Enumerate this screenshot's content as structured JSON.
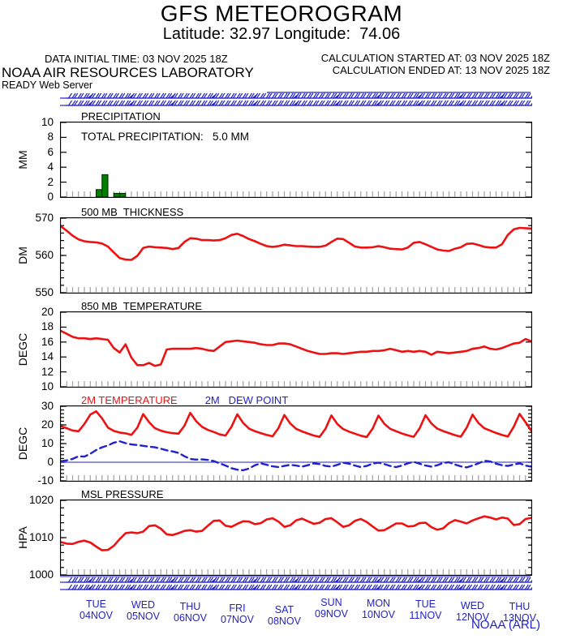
{
  "header": {
    "title": "GFS METEOROGRAM",
    "subtitle": "Latitude: 32.97 Longitude:  74.06",
    "data_initial_time": "DATA INITIAL TIME: 03 NOV 2025 18Z",
    "calc_started": "CALCULATION STARTED AT: 03 NOV 2025 18Z",
    "calc_ended": "CALCULATION ENDED AT: 13 NOV 2025 18Z",
    "organization": "NOAA AIR RESOURCES LABORATORY",
    "server": "READY Web Server"
  },
  "footer": {
    "credit": "NOAA (ARL)"
  },
  "colors": {
    "red": "#ee1111",
    "blue": "#2222cc",
    "green": "#008000",
    "tick_gray": "#a0a0a0"
  },
  "wind_band": {
    "color": "#2222cc"
  },
  "x_axis": {
    "days": [
      {
        "day": "TUE",
        "date": "04NOV"
      },
      {
        "day": "WED",
        "date": "05NOV"
      },
      {
        "day": "THU",
        "date": "06NOV"
      },
      {
        "day": "FRI",
        "date": "07NOV"
      },
      {
        "day": "SAT",
        "date": "08NOV"
      },
      {
        "day": "SUN",
        "date": "09NOV"
      },
      {
        "day": "MON",
        "date": "10NOV"
      },
      {
        "day": "TUE",
        "date": "11NOV"
      },
      {
        "day": "WED",
        "date": "12NOV"
      },
      {
        "day": "THU",
        "date": "13NOV"
      }
    ],
    "start": "03 NOV 2025 18Z",
    "end": "13 NOV 2025 18Z",
    "step_hours": 3
  },
  "chart_data": [
    {
      "type": "bar",
      "title": "PRECIPITATION",
      "annotation": "TOTAL PRECIPITATION:   5.0 MM",
      "ylabel": "MM",
      "ylim": [
        0,
        10
      ],
      "yticks": [
        0,
        2,
        4,
        6,
        8,
        10
      ],
      "bar_color": "#008000",
      "values": [
        0,
        0,
        0,
        0,
        0,
        0,
        1.0,
        3.0,
        0,
        0.5,
        0.5,
        0,
        0,
        0,
        0,
        0,
        0,
        0,
        0,
        0,
        0,
        0,
        0,
        0,
        0,
        0,
        0,
        0,
        0,
        0,
        0,
        0,
        0,
        0,
        0,
        0,
        0,
        0,
        0,
        0,
        0,
        0,
        0,
        0,
        0,
        0,
        0,
        0,
        0,
        0,
        0,
        0,
        0,
        0,
        0,
        0,
        0,
        0,
        0,
        0,
        0,
        0,
        0,
        0,
        0,
        0,
        0,
        0,
        0,
        0,
        0,
        0,
        0,
        0,
        0,
        0,
        0,
        0,
        0,
        0
      ]
    },
    {
      "type": "line",
      "title": "500 MB  THICKNESS",
      "ylabel": "DM",
      "ylim": [
        550,
        570
      ],
      "yticks": [
        550,
        560,
        570
      ],
      "minor_step": 2,
      "color": "#ee1111",
      "values": [
        567.8,
        566.6,
        565.3,
        564.3,
        563.8,
        563.6,
        563.5,
        563.2,
        562.4,
        560.8,
        559.3,
        558.9,
        558.8,
        559.9,
        562.0,
        562.4,
        562.2,
        562.1,
        562.0,
        561.7,
        562.0,
        563.6,
        564.6,
        564.5,
        564.1,
        564.1,
        564.0,
        564.1,
        564.6,
        565.5,
        565.8,
        565.2,
        564.4,
        563.8,
        563.1,
        562.5,
        562.3,
        562.5,
        562.9,
        562.7,
        562.5,
        562.5,
        562.4,
        562.3,
        562.3,
        562.6,
        563.6,
        564.5,
        564.4,
        563.4,
        562.4,
        562.1,
        562.1,
        562.2,
        562.5,
        562.2,
        561.8,
        561.7,
        561.6,
        562.1,
        563.4,
        563.6,
        563.0,
        562.3,
        561.6,
        561.3,
        561.2,
        561.8,
        562.2,
        563.1,
        563.2,
        562.8,
        562.3,
        562.1,
        562.1,
        563.0,
        565.5,
        567.0,
        567.4,
        567.3,
        567.2
      ]
    },
    {
      "type": "line",
      "title": "850 MB  TEMPERATURE",
      "ylabel": "DEGC",
      "ylim": [
        10,
        20
      ],
      "yticks": [
        10,
        12,
        14,
        16,
        18,
        20
      ],
      "color": "#ee1111",
      "values": [
        17.5,
        17.1,
        16.7,
        16.5,
        16.5,
        16.4,
        16.5,
        16.4,
        16.3,
        15.2,
        14.6,
        15.7,
        13.9,
        12.9,
        12.9,
        13.2,
        12.8,
        13.0,
        15.0,
        15.1,
        15.1,
        15.1,
        15.1,
        15.2,
        15.1,
        14.9,
        14.8,
        15.4,
        16.0,
        16.1,
        16.2,
        16.1,
        16.0,
        15.9,
        15.7,
        15.6,
        15.6,
        15.8,
        15.8,
        15.7,
        15.4,
        15.1,
        14.8,
        14.6,
        14.4,
        14.4,
        14.5,
        14.5,
        14.4,
        14.5,
        14.6,
        14.7,
        14.7,
        14.8,
        14.8,
        14.9,
        15.1,
        14.9,
        14.7,
        14.8,
        14.7,
        14.8,
        14.7,
        14.3,
        14.7,
        14.6,
        14.5,
        14.6,
        14.7,
        14.8,
        15.1,
        15.2,
        15.4,
        15.1,
        15.0,
        15.2,
        15.5,
        15.8,
        15.9,
        16.4,
        16.1
      ]
    },
    {
      "type": "line",
      "title": "2M TEMPERATURE",
      "title2": "2M   DEW POINT",
      "ylabel": "DEGC",
      "ylim": [
        -10,
        30
      ],
      "yticks": [
        -10,
        0,
        10,
        20,
        30
      ],
      "minor_step": 2,
      "zero_line": true,
      "series": [
        {
          "name": "2M TEMPERATURE",
          "color": "#ee1111",
          "style": "solid",
          "values": [
            19.3,
            18.2,
            17.0,
            16.6,
            20.5,
            25.5,
            27.3,
            23.5,
            18.6,
            16.8,
            15.9,
            15.5,
            14.7,
            18.5,
            25.8,
            21.5,
            18.2,
            16.9,
            16.1,
            15.6,
            15.3,
            19.5,
            26.5,
            22.0,
            19.0,
            17.3,
            16.2,
            14.9,
            14.3,
            19.0,
            25.7,
            21.0,
            18.0,
            16.6,
            15.6,
            14.6,
            13.9,
            18.3,
            25.3,
            20.8,
            17.9,
            16.5,
            15.4,
            14.3,
            13.6,
            18.0,
            25.1,
            20.5,
            17.8,
            16.4,
            15.3,
            14.2,
            13.5,
            18.0,
            25.0,
            20.6,
            17.9,
            16.6,
            15.4,
            14.4,
            13.6,
            18.2,
            25.2,
            20.8,
            18.0,
            16.7,
            15.6,
            14.5,
            13.7,
            18.5,
            25.5,
            21.0,
            18.2,
            16.9,
            15.7,
            14.6,
            13.8,
            19.0,
            25.9,
            21.5,
            16.8
          ]
        },
        {
          "name": "2M DEW POINT",
          "color": "#2222cc",
          "style": "dashed",
          "values": [
            0.5,
            1.0,
            1.8,
            3.2,
            3.0,
            4.5,
            6.5,
            8.0,
            9.0,
            10.5,
            11.2,
            10.2,
            9.5,
            9.2,
            8.8,
            8.3,
            8.0,
            7.2,
            6.4,
            5.8,
            5.0,
            3.2,
            1.8,
            1.4,
            1.5,
            1.2,
            0.6,
            -0.6,
            -1.8,
            -3.2,
            -4.0,
            -4.3,
            -3.4,
            -1.6,
            -0.6,
            -1.4,
            -2.2,
            -2.6,
            -2.0,
            -1.4,
            -1.8,
            -2.4,
            -1.6,
            -0.6,
            -1.0,
            -2.0,
            -2.4,
            -1.4,
            -0.3,
            -0.8,
            -1.8,
            -2.6,
            -2.0,
            -0.8,
            -0.2,
            -1.0,
            -2.0,
            -2.6,
            -1.8,
            -0.6,
            0.2,
            -0.8,
            -1.8,
            -2.4,
            -1.6,
            -0.4,
            0.0,
            -1.2,
            -2.2,
            -2.8,
            -1.8,
            -0.6,
            0.8,
            0.4,
            -0.8,
            -1.6,
            -2.0,
            -1.2,
            -0.6,
            -1.8,
            -2.4
          ]
        }
      ]
    },
    {
      "type": "line",
      "title": "MSL PRESSURE",
      "ylabel": "HPA",
      "ylim": [
        1000,
        1020
      ],
      "yticks": [
        1000,
        1010,
        1020
      ],
      "minor_step": 2,
      "color": "#ee1111",
      "values": [
        1008.8,
        1008.4,
        1008.3,
        1008.9,
        1009.2,
        1008.7,
        1007.6,
        1006.6,
        1006.7,
        1007.8,
        1009.6,
        1011.2,
        1011.4,
        1011.2,
        1011.6,
        1013.1,
        1013.3,
        1012.4,
        1010.9,
        1010.7,
        1011.2,
        1011.8,
        1012.0,
        1011.6,
        1011.8,
        1013.2,
        1014.5,
        1014.6,
        1013.2,
        1012.9,
        1013.7,
        1014.4,
        1014.3,
        1013.6,
        1013.9,
        1014.9,
        1015.2,
        1014.3,
        1012.9,
        1013.3,
        1014.6,
        1015.1,
        1014.4,
        1013.7,
        1014.0,
        1015.0,
        1015.2,
        1014.1,
        1012.9,
        1013.3,
        1014.5,
        1015.0,
        1014.2,
        1013.0,
        1011.9,
        1012.0,
        1012.9,
        1013.8,
        1013.8,
        1013.0,
        1013.1,
        1013.9,
        1014.0,
        1012.8,
        1012.1,
        1012.5,
        1013.9,
        1014.7,
        1014.3,
        1013.8,
        1014.6,
        1015.2,
        1015.7,
        1015.4,
        1014.9,
        1015.4,
        1015.1,
        1013.4,
        1013.6,
        1015.0,
        1015.3
      ]
    }
  ]
}
